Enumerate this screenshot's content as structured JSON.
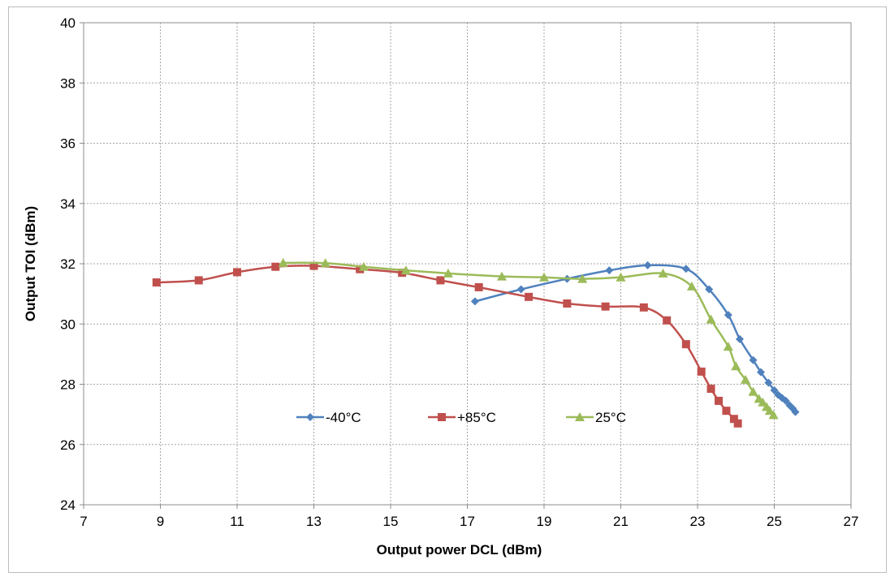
{
  "chart_data": {
    "type": "line",
    "title": "",
    "xlabel": "Output power DCL (dBm)",
    "ylabel": "Output TOI (dBm)",
    "xlim": [
      7,
      27
    ],
    "ylim": [
      24,
      40
    ],
    "xticks": [
      7,
      9,
      11,
      13,
      15,
      17,
      19,
      21,
      23,
      25,
      27
    ],
    "yticks": [
      24,
      26,
      28,
      30,
      32,
      34,
      36,
      38,
      40
    ],
    "grid": "dashed vertical and horizontal",
    "legend_position": "inside-bottom",
    "series": [
      {
        "name": "-40°C",
        "color": "#4f81bd",
        "marker": "diamond",
        "points": [
          [
            17.2,
            30.75
          ],
          [
            18.4,
            31.15
          ],
          [
            19.6,
            31.5
          ],
          [
            20.7,
            31.78
          ],
          [
            21.7,
            31.95
          ],
          [
            22.7,
            31.83
          ],
          [
            23.3,
            31.15
          ],
          [
            23.8,
            30.3
          ],
          [
            24.1,
            29.5
          ],
          [
            24.45,
            28.8
          ],
          [
            24.65,
            28.4
          ],
          [
            24.85,
            28.05
          ],
          [
            25.0,
            27.8
          ],
          [
            25.1,
            27.65
          ],
          [
            25.2,
            27.55
          ],
          [
            25.3,
            27.45
          ],
          [
            25.4,
            27.3
          ],
          [
            25.48,
            27.2
          ],
          [
            25.55,
            27.08
          ]
        ]
      },
      {
        "name": "+85°C",
        "color": "#c0504d",
        "marker": "square",
        "points": [
          [
            8.9,
            31.38
          ],
          [
            10.0,
            31.45
          ],
          [
            11.0,
            31.72
          ],
          [
            12.0,
            31.9
          ],
          [
            13.0,
            31.93
          ],
          [
            14.2,
            31.82
          ],
          [
            15.3,
            31.7
          ],
          [
            16.3,
            31.45
          ],
          [
            17.3,
            31.22
          ],
          [
            18.6,
            30.9
          ],
          [
            19.6,
            30.68
          ],
          [
            20.6,
            30.58
          ],
          [
            21.6,
            30.55
          ],
          [
            22.2,
            30.12
          ],
          [
            22.7,
            29.33
          ],
          [
            23.1,
            28.42
          ],
          [
            23.35,
            27.85
          ],
          [
            23.55,
            27.45
          ],
          [
            23.75,
            27.12
          ],
          [
            23.95,
            26.85
          ],
          [
            24.05,
            26.7
          ]
        ]
      },
      {
        "name": "25°C",
        "color": "#9bbb59",
        "marker": "triangle",
        "points": [
          [
            12.2,
            32.03
          ],
          [
            13.3,
            32.02
          ],
          [
            14.3,
            31.9
          ],
          [
            15.4,
            31.78
          ],
          [
            16.5,
            31.68
          ],
          [
            17.9,
            31.58
          ],
          [
            19.0,
            31.55
          ],
          [
            20.0,
            31.5
          ],
          [
            21.0,
            31.55
          ],
          [
            22.1,
            31.68
          ],
          [
            22.85,
            31.25
          ],
          [
            23.35,
            30.15
          ],
          [
            23.8,
            29.25
          ],
          [
            24.0,
            28.6
          ],
          [
            24.25,
            28.15
          ],
          [
            24.45,
            27.75
          ],
          [
            24.6,
            27.52
          ],
          [
            24.7,
            27.4
          ],
          [
            24.8,
            27.25
          ],
          [
            24.88,
            27.12
          ],
          [
            24.98,
            26.98
          ]
        ]
      }
    ]
  }
}
